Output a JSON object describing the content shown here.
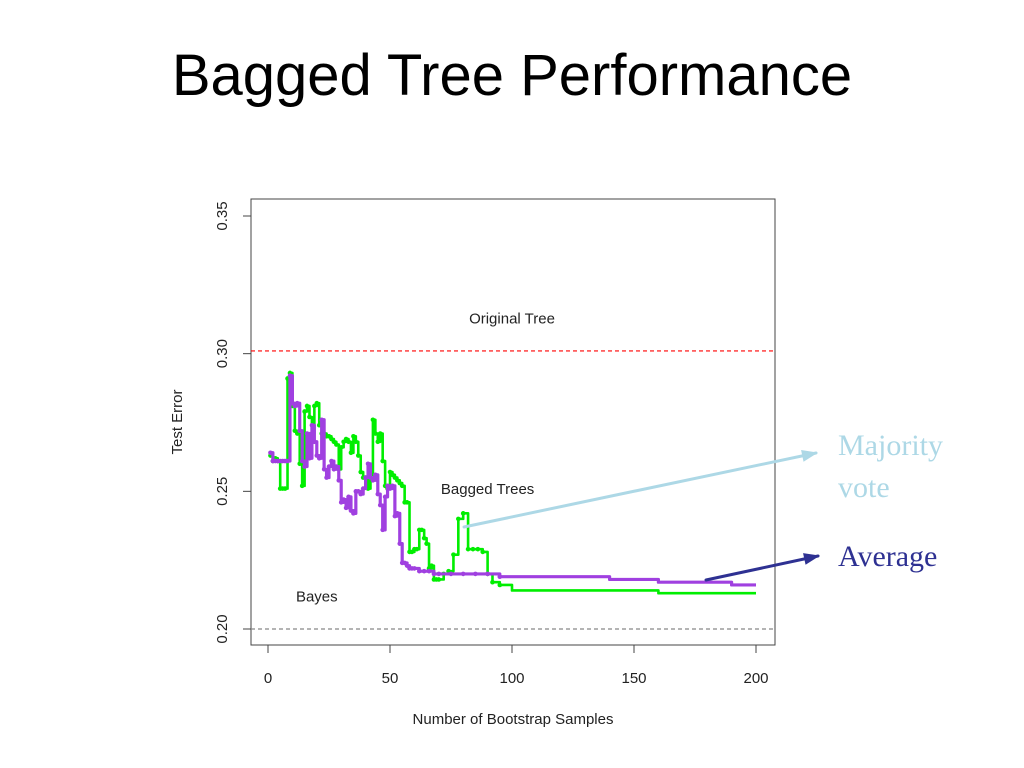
{
  "slide": {
    "title": "Bagged Tree Performance"
  },
  "callouts": {
    "majority": {
      "text": "Majority vote",
      "color": "#add8e6"
    },
    "average": {
      "text": "Average",
      "color": "#2e3192"
    }
  },
  "chart_data": {
    "type": "line",
    "xlabel": "Number of Bootstrap Samples",
    "ylabel": "Test Error",
    "xlim": [
      0,
      200
    ],
    "ylim": [
      0.2,
      0.35
    ],
    "xticks": [
      0,
      50,
      100,
      150,
      200
    ],
    "yticks": [
      0.2,
      0.25,
      0.3,
      0.35
    ],
    "ytick_labels": [
      "0.20",
      "0.25",
      "0.30",
      "0.35"
    ],
    "grid": false,
    "reference_lines": [
      {
        "label": "Original Tree",
        "y": 0.301,
        "color": "#ff0000",
        "style": "dashed"
      },
      {
        "label": "Bayes",
        "y": 0.2,
        "color": "#888888",
        "style": "dashed"
      }
    ],
    "annotations": [
      {
        "text": "Bagged Trees",
        "x": 90,
        "y": 0.249
      },
      {
        "text": "Original Tree",
        "x": 100,
        "y": 0.311
      },
      {
        "text": "Bayes",
        "x": 20,
        "y": 0.21
      }
    ],
    "series": [
      {
        "color": "#00ee00",
        "x": [
          1,
          2,
          3,
          4,
          5,
          6,
          7,
          8,
          9,
          10,
          11,
          12,
          13,
          14,
          15,
          16,
          17,
          18,
          19,
          20,
          21,
          22,
          23,
          24,
          25,
          26,
          27,
          28,
          29,
          30,
          31,
          32,
          33,
          34,
          35,
          36,
          37,
          38,
          39,
          40,
          41,
          42,
          43,
          44,
          45,
          46,
          47,
          48,
          49,
          50,
          51,
          52,
          53,
          54,
          55,
          56,
          57,
          58,
          59,
          60,
          61,
          62,
          63,
          64,
          65,
          66,
          67,
          68,
          69,
          70,
          72,
          74,
          76,
          78,
          80,
          82,
          84,
          86,
          88,
          90,
          92,
          95,
          100,
          110,
          120,
          130,
          140,
          150,
          160,
          170,
          180,
          190,
          200
        ],
        "values": [
          0.263,
          0.261,
          0.262,
          0.261,
          0.251,
          0.251,
          0.251,
          0.291,
          0.293,
          0.281,
          0.272,
          0.271,
          0.26,
          0.252,
          0.279,
          0.281,
          0.277,
          0.271,
          0.281,
          0.282,
          0.274,
          0.271,
          0.271,
          0.27,
          0.27,
          0.269,
          0.268,
          0.267,
          0.258,
          0.266,
          0.268,
          0.269,
          0.268,
          0.264,
          0.27,
          0.268,
          0.263,
          0.257,
          0.255,
          0.255,
          0.251,
          0.255,
          0.276,
          0.271,
          0.268,
          0.271,
          0.261,
          0.252,
          0.251,
          0.257,
          0.256,
          0.255,
          0.254,
          0.253,
          0.252,
          0.246,
          0.246,
          0.228,
          0.228,
          0.229,
          0.229,
          0.236,
          0.236,
          0.233,
          0.231,
          0.222,
          0.223,
          0.218,
          0.218,
          0.218,
          0.22,
          0.221,
          0.227,
          0.24,
          0.242,
          0.229,
          0.229,
          0.229,
          0.228,
          0.22,
          0.217,
          0.216,
          0.214,
          0.214,
          0.214,
          0.214,
          0.214,
          0.214,
          0.213,
          0.213,
          0.213,
          0.213,
          0.213
        ]
      },
      {
        "color": "#a040e0",
        "x": [
          1,
          2,
          3,
          4,
          5,
          6,
          7,
          8,
          9,
          10,
          11,
          12,
          13,
          14,
          15,
          16,
          17,
          18,
          19,
          20,
          21,
          22,
          23,
          24,
          25,
          26,
          27,
          28,
          29,
          30,
          31,
          32,
          33,
          34,
          35,
          36,
          37,
          38,
          39,
          40,
          41,
          42,
          43,
          44,
          45,
          46,
          47,
          48,
          49,
          50,
          51,
          52,
          53,
          54,
          55,
          56,
          57,
          58,
          59,
          60,
          62,
          64,
          66,
          68,
          70,
          75,
          80,
          85,
          90,
          95,
          100,
          110,
          120,
          130,
          140,
          150,
          160,
          170,
          180,
          190,
          200
        ],
        "values": [
          0.264,
          0.261,
          0.261,
          0.261,
          0.261,
          0.261,
          0.261,
          0.261,
          0.292,
          0.282,
          0.281,
          0.282,
          0.272,
          0.261,
          0.259,
          0.271,
          0.262,
          0.274,
          0.268,
          0.263,
          0.262,
          0.276,
          0.258,
          0.255,
          0.259,
          0.261,
          0.258,
          0.259,
          0.254,
          0.246,
          0.247,
          0.244,
          0.248,
          0.243,
          0.242,
          0.25,
          0.25,
          0.249,
          0.251,
          0.255,
          0.26,
          0.255,
          0.254,
          0.256,
          0.249,
          0.245,
          0.236,
          0.248,
          0.252,
          0.251,
          0.252,
          0.241,
          0.242,
          0.231,
          0.224,
          0.224,
          0.223,
          0.222,
          0.222,
          0.222,
          0.221,
          0.221,
          0.221,
          0.22,
          0.22,
          0.22,
          0.22,
          0.22,
          0.22,
          0.219,
          0.219,
          0.219,
          0.219,
          0.219,
          0.218,
          0.218,
          0.217,
          0.217,
          0.217,
          0.216,
          0.216
        ]
      }
    ]
  }
}
